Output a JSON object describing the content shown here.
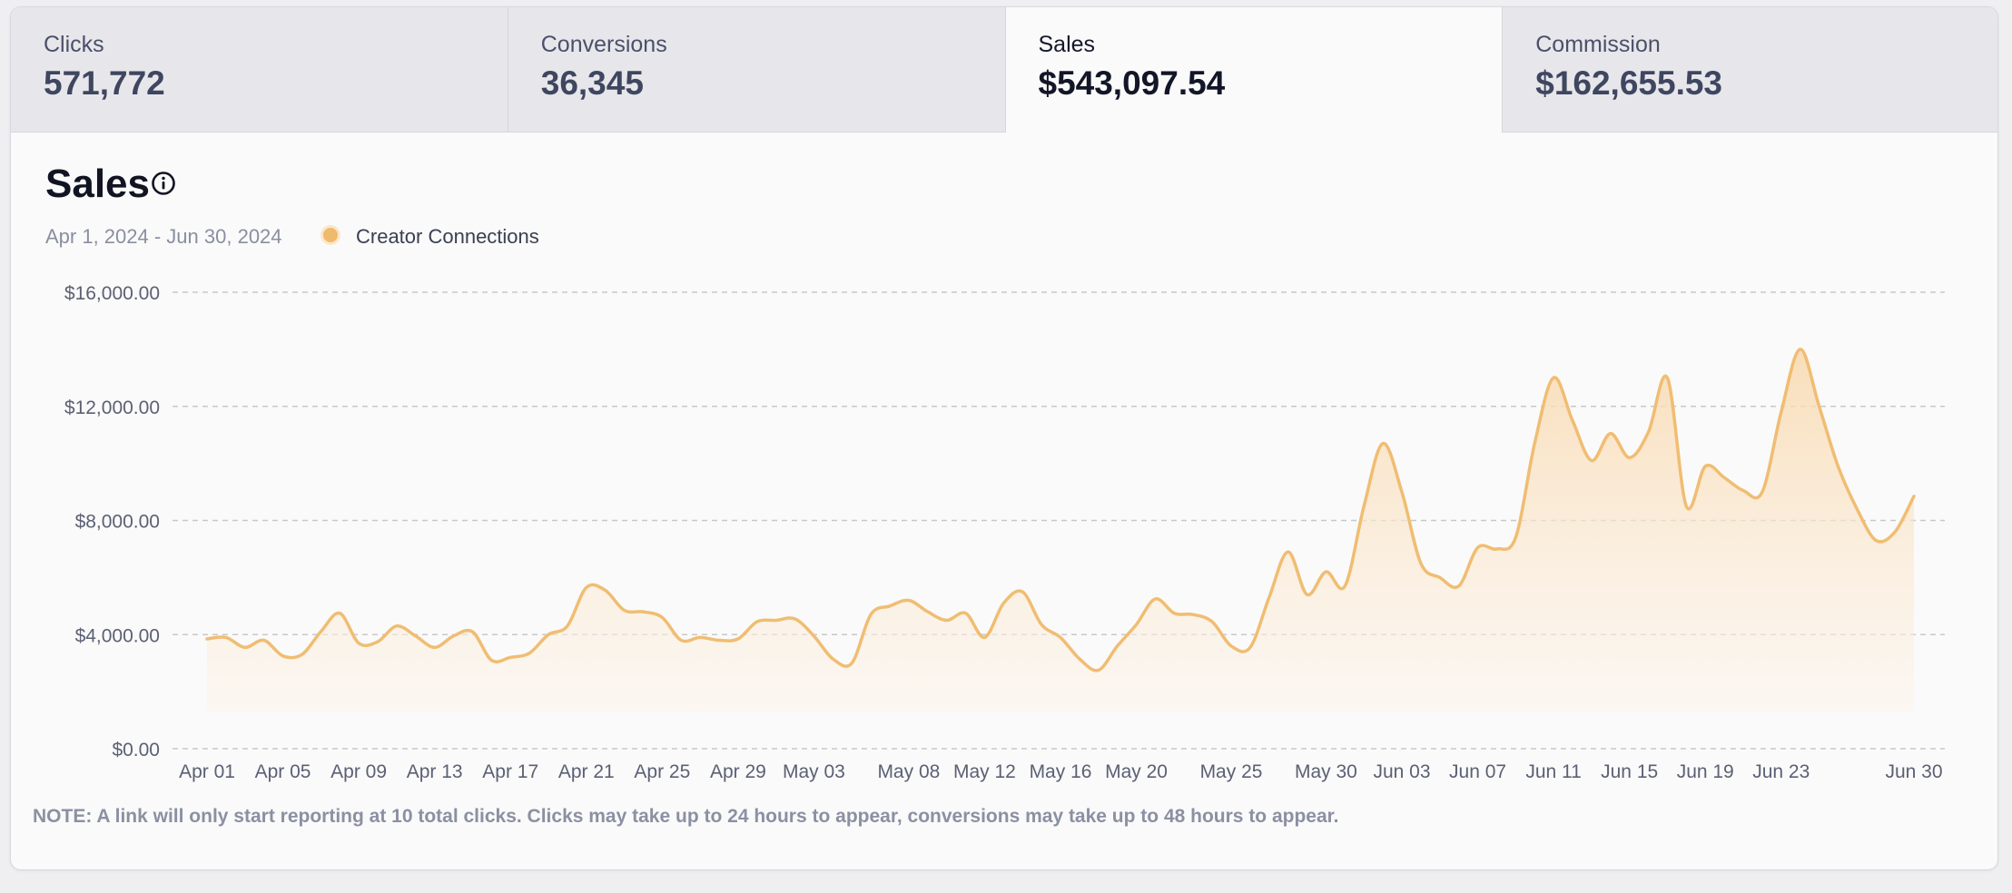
{
  "tabs": [
    {
      "label": "Clicks",
      "value": "571,772"
    },
    {
      "label": "Conversions",
      "value": "36,345"
    },
    {
      "label": "Sales",
      "value": "$543,097.54"
    },
    {
      "label": "Commission",
      "value": "$162,655.53"
    }
  ],
  "active_tab": "Sales",
  "chart_header": {
    "title": "Sales",
    "date_range": "Apr 1, 2024 - Jun 30, 2024",
    "legend_label": "Creator Connections"
  },
  "note": "NOTE: A link will only start reporting at 10 total clicks. Clicks may take up to 24 hours to appear, conversions may take up to 48 hours to appear.",
  "colors": {
    "series": "#f0bd72",
    "fill_top": "#f8d9ae",
    "fill_bottom": "#fdf4ea",
    "grid": "#c8c8cc"
  },
  "chart_data": {
    "type": "area",
    "title": "Sales",
    "xlabel": "",
    "ylabel": "",
    "ylim": [
      0,
      16000
    ],
    "y_ticks": [
      "$16,000.00",
      "$12,000.00",
      "$8,000.00",
      "$4,000.00",
      "$0.00"
    ],
    "y_tick_values": [
      16000,
      12000,
      8000,
      4000,
      0
    ],
    "x_tick_labels": [
      "Apr 01",
      "Apr 05",
      "Apr 09",
      "Apr 13",
      "Apr 17",
      "Apr 21",
      "Apr 25",
      "Apr 29",
      "May 03",
      "May 08",
      "May 12",
      "May 16",
      "May 20",
      "May 25",
      "May 30",
      "Jun 03",
      "Jun 07",
      "Jun 11",
      "Jun 15",
      "Jun 19",
      "Jun 23",
      "Jun 30"
    ],
    "x_tick_days": [
      0,
      4,
      8,
      12,
      16,
      20,
      24,
      28,
      32,
      37,
      41,
      45,
      49,
      54,
      59,
      63,
      67,
      71,
      75,
      79,
      83,
      90
    ],
    "grid": true,
    "legend_position": "top-left",
    "series": [
      {
        "name": "Creator Connections",
        "values": [
          3850,
          3900,
          3550,
          3800,
          3250,
          3300,
          4100,
          4750,
          3700,
          3750,
          4300,
          3950,
          3550,
          3950,
          4100,
          3100,
          3200,
          3350,
          4000,
          4300,
          5650,
          5550,
          4850,
          4800,
          4600,
          3800,
          3900,
          3800,
          3850,
          4450,
          4500,
          4550,
          3950,
          3150,
          3000,
          4700,
          5000,
          5200,
          4800,
          4500,
          4750,
          3900,
          5100,
          5500,
          4350,
          3900,
          3150,
          2750,
          3600,
          4350,
          5250,
          4750,
          4700,
          4450,
          3600,
          3550,
          5300,
          6900,
          5400,
          6200,
          5700,
          8500,
          10700,
          9000,
          6500,
          6000,
          5700,
          7050,
          7000,
          7400,
          10700,
          13000,
          11500,
          10100,
          11050,
          10200,
          11100,
          13000,
          8500,
          9900,
          9500,
          9050,
          9000,
          11800,
          14000,
          12000,
          9900,
          8400,
          7300,
          7600,
          8850
        ]
      }
    ]
  }
}
